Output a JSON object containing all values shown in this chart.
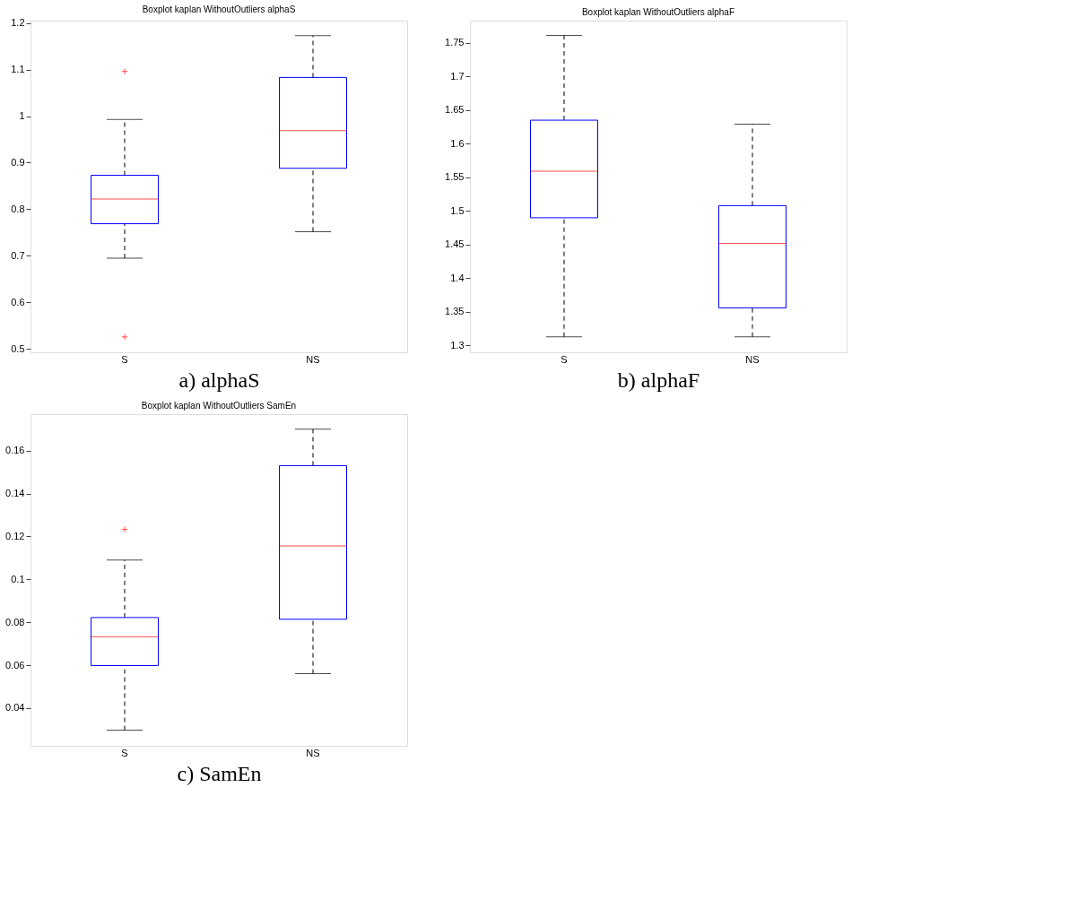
{
  "chart_data": [
    {
      "type": "box",
      "title": "Boxplot kaplan WithoutOutliers alphaS",
      "xlabel": "a) alphaS",
      "categories": [
        "S",
        "NS"
      ],
      "ylim": [
        0.493,
        1.205
      ],
      "yticks": [
        0.5,
        0.6,
        0.7,
        0.8,
        0.9,
        1,
        1.1,
        1.2
      ],
      "grid": false,
      "series": [
        {
          "boxes": [
            {
              "low": 0.695,
              "q1": 0.769,
              "median": 0.822,
              "q3": 0.873,
              "high": 0.993,
              "outliers": [
                1.096,
                0.526
              ]
            },
            {
              "low": 0.752,
              "q1": 0.888,
              "median": 0.969,
              "q3": 1.083,
              "high": 1.173
            }
          ]
        }
      ]
    },
    {
      "type": "box",
      "title": "Boxplot kaplan WithoutOutliers alphaF",
      "xlabel": "b) alphaF",
      "categories": [
        "S",
        "NS"
      ],
      "ylim": [
        1.29,
        1.783
      ],
      "yticks": [
        1.3,
        1.35,
        1.4,
        1.45,
        1.5,
        1.55,
        1.6,
        1.65,
        1.7,
        1.75
      ],
      "grid": false,
      "series": [
        {
          "boxes": [
            {
              "low": 1.313,
              "q1": 1.49,
              "median": 1.559,
              "q3": 1.635,
              "high": 1.761
            },
            {
              "low": 1.313,
              "q1": 1.356,
              "median": 1.452,
              "q3": 1.508,
              "high": 1.629
            }
          ]
        }
      ]
    },
    {
      "type": "box",
      "title": "Boxplot kaplan WithoutOutliers SamEn",
      "xlabel": "c) SamEn",
      "categories": [
        "S",
        "NS"
      ],
      "ylim": [
        0.0224,
        0.177
      ],
      "yticks": [
        0.04,
        0.06,
        0.08,
        0.1,
        0.12,
        0.14,
        0.16
      ],
      "grid": false,
      "series": [
        {
          "boxes": [
            {
              "low": 0.0297,
              "q1": 0.0598,
              "median": 0.0733,
              "q3": 0.0822,
              "high": 0.109,
              "outliers": [
                0.1233
              ]
            },
            {
              "low": 0.056,
              "q1": 0.0814,
              "median": 0.1156,
              "q3": 0.153,
              "high": 0.17
            }
          ]
        }
      ]
    }
  ]
}
